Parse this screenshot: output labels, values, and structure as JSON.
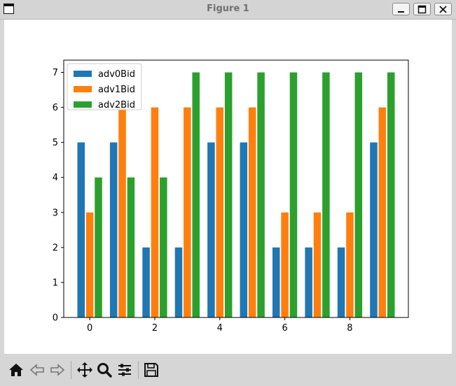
{
  "window": {
    "title": "Figure 1",
    "minimize_icon": "minimize-icon",
    "maximize_icon": "maximize-icon",
    "close_icon": "close-icon"
  },
  "toolbar": {
    "buttons": [
      {
        "name": "home",
        "icon": "home-icon"
      },
      {
        "name": "back",
        "icon": "arrow-left-icon"
      },
      {
        "name": "forward",
        "icon": "arrow-right-icon"
      },
      {
        "name": "pan",
        "icon": "move-icon"
      },
      {
        "name": "zoom",
        "icon": "magnifier-icon"
      },
      {
        "name": "configure",
        "icon": "sliders-icon"
      },
      {
        "name": "save",
        "icon": "floppy-icon"
      }
    ]
  },
  "chart_data": {
    "type": "bar",
    "x": [
      0,
      1,
      2,
      3,
      4,
      5,
      6,
      7,
      8,
      9
    ],
    "series": [
      {
        "name": "adv0Bid",
        "color": "#1f77b4",
        "values": [
          5,
          5,
          2,
          2,
          5,
          5,
          2,
          2,
          2,
          5
        ]
      },
      {
        "name": "adv1Bid",
        "color": "#ff7f0e",
        "values": [
          3,
          6,
          6,
          6,
          6,
          6,
          3,
          3,
          3,
          6
        ]
      },
      {
        "name": "adv2Bid",
        "color": "#2ca02c",
        "values": [
          4,
          4,
          4,
          7,
          7,
          7,
          7,
          7,
          7,
          7
        ]
      }
    ],
    "xticks": [
      "0",
      "2",
      "4",
      "6",
      "8"
    ],
    "xtick_values": [
      0,
      2,
      4,
      6,
      8
    ],
    "yticks": [
      "0",
      "1",
      "2",
      "3",
      "4",
      "5",
      "6",
      "7"
    ],
    "ylim": [
      0,
      7.35
    ],
    "xlim": [
      -0.8,
      9.8
    ],
    "legend": "upper-left",
    "grid": false
  }
}
